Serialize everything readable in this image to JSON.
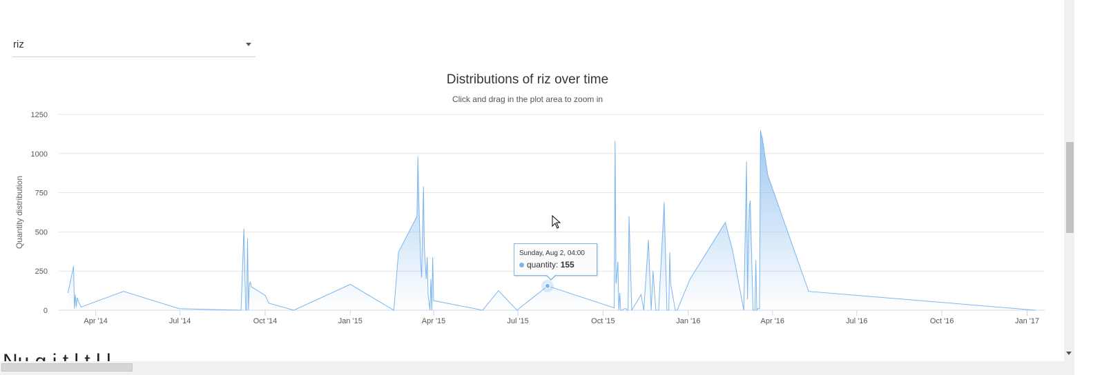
{
  "selector": {
    "value": "riz",
    "icon": "chevron-down-icon"
  },
  "heading_partial": "Nu  g  i  t  l   t       l   l",
  "tooltip": {
    "date": "Sunday, Aug 2, 04:00",
    "series": "quantity",
    "value": "155"
  },
  "colors": {
    "series": "#7cb5ec",
    "grid": "#e6e6e6",
    "axis": "#ccd6eb"
  },
  "chart_data": {
    "type": "area",
    "title": "Distributions of riz over time",
    "subtitle": "Click and drag in the plot area to zoom in",
    "ylabel": "Quantity distribution",
    "xlabel": "",
    "ylim": [
      0,
      1250
    ],
    "xlim": [
      "2014-02-20",
      "2017-01-20"
    ],
    "yticks": [
      0,
      250,
      500,
      750,
      1000,
      1250
    ],
    "xticks": [
      "Apr '14",
      "Jul '14",
      "Oct '14",
      "Jan '15",
      "Apr '15",
      "Jul '15",
      "Oct '15",
      "Jan '16",
      "Apr '16",
      "Jul '16",
      "Oct '16",
      "Jan '17"
    ],
    "xtick_dates": [
      "2014-04-01",
      "2014-07-01",
      "2014-10-01",
      "2015-01-01",
      "2015-04-01",
      "2015-07-01",
      "2015-10-01",
      "2016-01-01",
      "2016-04-01",
      "2016-07-01",
      "2016-10-01",
      "2017-01-01"
    ],
    "grid": true,
    "legend": "none",
    "highlighted": {
      "x": "2015-08-02",
      "y": 155
    },
    "series": [
      {
        "name": "quantity",
        "x": [
          "2014-03-02",
          "2014-03-07",
          "2014-03-08",
          "2014-03-09",
          "2014-03-10",
          "2014-03-11",
          "2014-03-12",
          "2014-03-13",
          "2014-03-16",
          "2014-05-01",
          "2014-06-30",
          "2014-09-03",
          "2014-09-05",
          "2014-09-08",
          "2014-09-10",
          "2014-09-11",
          "2014-09-12",
          "2014-09-13",
          "2014-09-14",
          "2014-09-15",
          "2014-09-16",
          "2014-10-01",
          "2014-10-05",
          "2014-11-01",
          "2015-01-01",
          "2015-02-17",
          "2015-02-22",
          "2015-03-14",
          "2015-03-15",
          "2015-03-16",
          "2015-03-18",
          "2015-03-19",
          "2015-03-21",
          "2015-03-22",
          "2015-03-24",
          "2015-03-25",
          "2015-03-26",
          "2015-03-28",
          "2015-03-29",
          "2015-03-30",
          "2015-03-31",
          "2015-04-01",
          "2015-04-02",
          "2015-05-24",
          "2015-06-10",
          "2015-06-30",
          "2015-08-02",
          "2015-10-13",
          "2015-10-14",
          "2015-10-15",
          "2015-10-17",
          "2015-10-18",
          "2015-10-19",
          "2015-10-20",
          "2015-10-21",
          "2015-10-24",
          "2015-10-26",
          "2015-10-27",
          "2015-10-28",
          "2015-10-29",
          "2015-11-01",
          "2015-11-11",
          "2015-11-14",
          "2015-11-19",
          "2015-11-22",
          "2015-11-24",
          "2015-11-27",
          "2015-11-30",
          "2015-12-06",
          "2015-12-09",
          "2015-12-11",
          "2015-12-12",
          "2015-12-13",
          "2015-12-18",
          "2015-12-20",
          "2016-01-03",
          "2016-02-10",
          "2016-02-18",
          "2016-03-01",
          "2016-03-04",
          "2016-03-05",
          "2016-03-06",
          "2016-03-07",
          "2016-03-08",
          "2016-03-11",
          "2016-03-13",
          "2016-03-14",
          "2016-03-15",
          "2016-03-16",
          "2016-03-17",
          "2016-03-18",
          "2016-03-19",
          "2016-03-20",
          "2016-03-21",
          "2016-03-26",
          "2016-03-27",
          "2016-05-10",
          "2017-01-10"
        ],
        "values": [
          110,
          250,
          280,
          10,
          100,
          20,
          80,
          60,
          20,
          120,
          10,
          0,
          0,
          520,
          0,
          0,
          460,
          0,
          170,
          180,
          150,
          95,
          45,
          0,
          165,
          0,
          370,
          600,
          980,
          700,
          300,
          210,
          790,
          400,
          200,
          340,
          100,
          0,
          200,
          0,
          340,
          60,
          60,
          0,
          125,
          0,
          155,
          15,
          1080,
          170,
          310,
          0,
          110,
          0,
          0,
          10,
          10,
          0,
          0,
          600,
          0,
          100,
          0,
          450,
          0,
          250,
          0,
          0,
          690,
          0,
          0,
          370,
          170,
          0,
          0,
          200,
          560,
          380,
          0,
          950,
          70,
          450,
          670,
          700,
          0,
          0,
          320,
          0,
          10,
          10,
          10,
          1150,
          1120,
          1100,
          900,
          860,
          120,
          0
        ]
      }
    ]
  }
}
